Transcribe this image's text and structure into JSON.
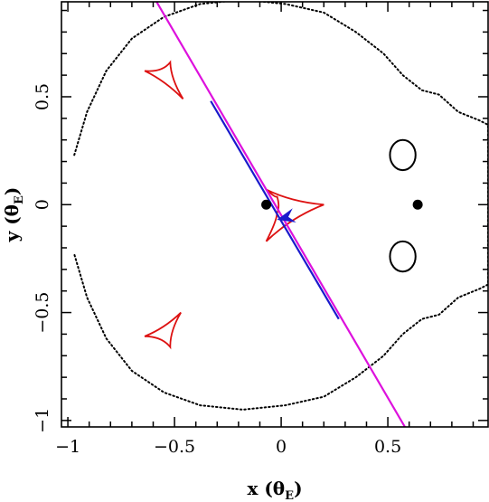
{
  "chart_data": {
    "type": "scatter",
    "title": "",
    "xlabel": {
      "main": "x (θ",
      "sub": "E",
      "close": ")"
    },
    "ylabel": {
      "main": "y (θ",
      "sub": "E",
      "close": ")"
    },
    "xlim": [
      -1.03,
      0.97
    ],
    "ylim": [
      -1.03,
      0.94
    ],
    "grid": false,
    "x_major_ticks": [
      -1,
      -0.5,
      0,
      0.5
    ],
    "x_tick_labels": [
      "−1",
      "−0.5",
      "0",
      "0.5"
    ],
    "y_major_ticks": [
      -1,
      -0.5,
      0,
      0.5
    ],
    "y_tick_labels": [
      "−1",
      "−0.5",
      "0",
      "0.5"
    ],
    "minor_tick_step": 0.1,
    "lens_positions": [
      {
        "x": -0.07,
        "y": 0.0
      },
      {
        "x": 0.64,
        "y": 0.0
      }
    ],
    "critical_curves": {
      "outer": {
        "style": "dotted",
        "color": "#000000",
        "points": [
          [
            -0.97,
            0.23
          ],
          [
            -0.91,
            0.43
          ],
          [
            -0.82,
            0.62
          ],
          [
            -0.7,
            0.77
          ],
          [
            -0.55,
            0.87
          ],
          [
            -0.38,
            0.93
          ],
          [
            -0.18,
            0.95
          ],
          [
            0.02,
            0.93
          ],
          [
            0.2,
            0.89
          ],
          [
            0.35,
            0.8
          ],
          [
            0.48,
            0.7
          ],
          [
            0.57,
            0.6
          ],
          [
            0.66,
            0.53
          ],
          [
            0.74,
            0.51
          ],
          [
            0.83,
            0.43
          ],
          [
            0.93,
            0.39
          ],
          [
            0.97,
            0.37
          ],
          [
            0.97,
            -0.37
          ],
          [
            0.93,
            -0.39
          ],
          [
            0.83,
            -0.43
          ],
          [
            0.74,
            -0.51
          ],
          [
            0.66,
            -0.53
          ],
          [
            0.57,
            -0.6
          ],
          [
            0.48,
            -0.7
          ],
          [
            0.35,
            -0.8
          ],
          [
            0.2,
            -0.89
          ],
          [
            0.02,
            -0.93
          ],
          [
            -0.18,
            -0.95
          ],
          [
            -0.38,
            -0.93
          ],
          [
            -0.55,
            -0.87
          ],
          [
            -0.7,
            -0.77
          ],
          [
            -0.82,
            -0.62
          ],
          [
            -0.91,
            -0.43
          ],
          [
            -0.97,
            -0.23
          ]
        ]
      },
      "inner": [
        {
          "cx": 0.57,
          "cy": 0.23,
          "rx": 0.06,
          "ry": 0.07,
          "color": "#000000"
        },
        {
          "cx": 0.57,
          "cy": -0.24,
          "rx": 0.06,
          "ry": 0.07,
          "color": "#000000"
        }
      ]
    },
    "caustics": {
      "color": "#dd1111",
      "central": [
        [
          -0.07,
          0.07
        ],
        [
          0.2,
          0.0
        ],
        [
          -0.07,
          -0.17
        ],
        [
          -0.02,
          -0.04
        ],
        [
          -0.02,
          0.04
        ]
      ],
      "upper_left": [
        [
          -0.64,
          0.62
        ],
        [
          -0.52,
          0.66
        ],
        [
          -0.46,
          0.49
        ]
      ],
      "lower_left": [
        [
          -0.64,
          -0.61
        ],
        [
          -0.47,
          -0.5
        ],
        [
          -0.52,
          -0.66
        ]
      ]
    },
    "trajectory": {
      "start": [
        -0.59,
        0.95
      ],
      "end": [
        0.58,
        -1.03
      ],
      "outer_color": "#dd11dd",
      "inner_color": "#1a1acc",
      "inner_range": [
        [
          -0.33,
          0.48
        ],
        [
          0.27,
          -0.53
        ]
      ],
      "direction_arrow": {
        "tip": [
          -0.02,
          -0.07
        ],
        "back": [
          0.06,
          -0.05
        ],
        "color": "#1a1acc"
      }
    }
  }
}
